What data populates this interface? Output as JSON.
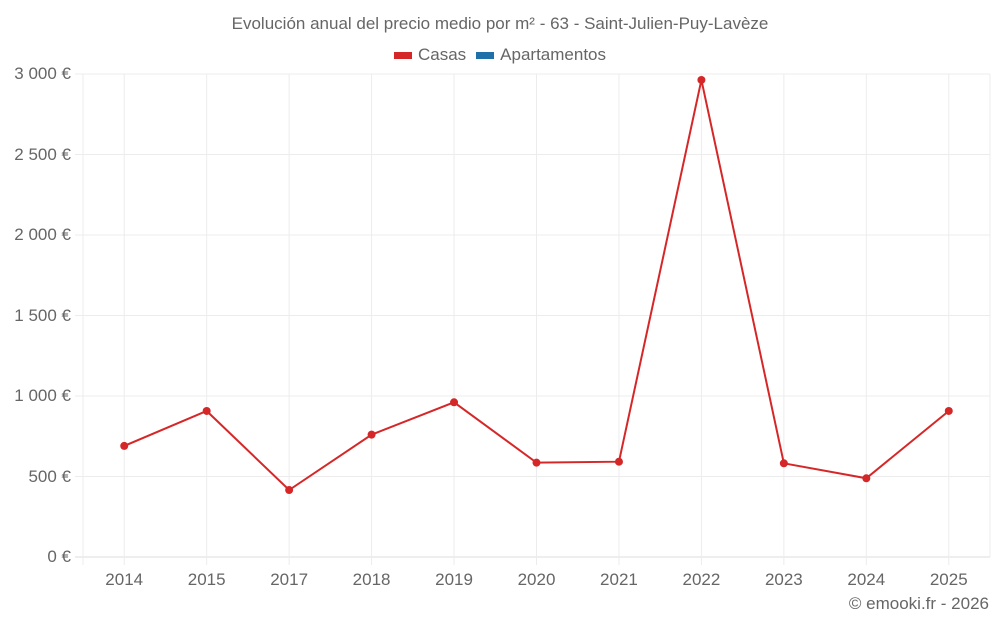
{
  "title": "Evolución anual del precio medio por m² - 63 - Saint-Julien-Puy-Lavèze",
  "legend": [
    {
      "label": "Casas",
      "color": "#d62728"
    },
    {
      "label": "Apartamentos",
      "color": "#1f6fa8"
    }
  ],
  "y_ticks": [
    "0 €",
    "500 €",
    "1 000 €",
    "1 500 €",
    "2 000 €",
    "2 500 €",
    "3 000 €"
  ],
  "x_ticks": [
    "2014",
    "2015",
    "2017",
    "2018",
    "2019",
    "2020",
    "2021",
    "2022",
    "2023",
    "2024",
    "2025"
  ],
  "credit": "© emooki.fr - 2026",
  "chart_data": {
    "type": "line",
    "title": "Evolución anual del precio medio por m² - 63 - Saint-Julien-Puy-Lavèze",
    "xlabel": "",
    "ylabel": "",
    "categories": [
      "2014",
      "2015",
      "2017",
      "2018",
      "2019",
      "2020",
      "2021",
      "2022",
      "2023",
      "2024",
      "2025"
    ],
    "series": [
      {
        "name": "Casas",
        "color": "#d62728",
        "values": [
          690,
          907,
          416,
          760,
          961,
          586,
          592,
          2963,
          582,
          489,
          907
        ]
      },
      {
        "name": "Apartamentos",
        "color": "#1f6fa8",
        "values": []
      }
    ],
    "ylim": [
      0,
      3000
    ],
    "y_tick_values": [
      0,
      500,
      1000,
      1500,
      2000,
      2500,
      3000
    ],
    "grid": true,
    "legend_position": "top"
  }
}
